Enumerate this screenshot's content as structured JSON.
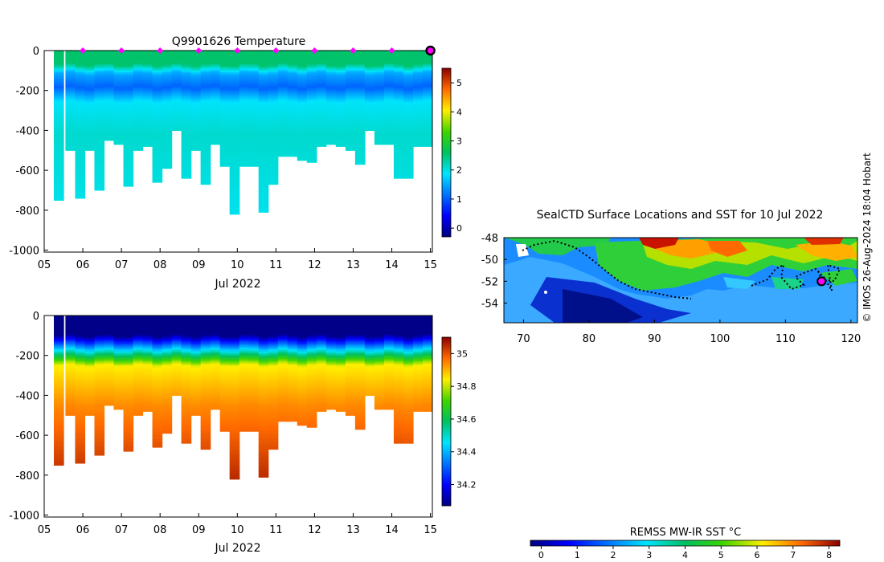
{
  "chart_data": [
    {
      "type": "heatmap",
      "id": "temperature",
      "title": "Q9901626  Temperature",
      "xlabel": "Jul 2022",
      "ylabel": "",
      "x_ticks": [
        "05",
        "06",
        "07",
        "08",
        "09",
        "10",
        "11",
        "12",
        "13",
        "14",
        "15"
      ],
      "y_ticks": [
        0,
        -200,
        -400,
        -600,
        -800,
        -1000
      ],
      "xlim": [
        5,
        15.05
      ],
      "ylim": [
        -1010,
        0
      ],
      "colorbar": {
        "range": [
          -0.3,
          5.5
        ],
        "ticks": [
          "0",
          "1",
          "2",
          "3",
          "4",
          "5"
        ],
        "tick_values": [
          0,
          1,
          2,
          3,
          4,
          5
        ]
      },
      "profile_markers": [
        6,
        7,
        8,
        9,
        10,
        11,
        12,
        13,
        14
      ],
      "current_profile": 15,
      "marker_color": "#ff00ff",
      "profile_days": [
        5.25,
        5.55,
        5.8,
        6.05,
        6.3,
        6.55,
        6.8,
        7.05,
        7.3,
        7.55,
        7.8,
        8.05,
        8.3,
        8.55,
        8.8,
        9.05,
        9.3,
        9.55,
        9.8,
        10.05,
        10.3,
        10.55,
        10.8,
        11.05,
        11.3,
        11.55,
        11.8,
        12.05,
        12.3,
        12.55,
        12.8,
        13.05,
        13.3,
        13.55,
        13.8,
        14.05,
        14.3,
        14.55,
        14.8
      ],
      "profile_max_depth": [
        -745,
        -500,
        -740,
        -500,
        -700,
        -450,
        -465,
        -680,
        -500,
        -475,
        -660,
        -585,
        -400,
        -640,
        -500,
        -665,
        -470,
        -575,
        -820,
        -580,
        -580,
        -810,
        -670,
        -530,
        -530,
        -550,
        -555,
        -475,
        -470,
        -480,
        -500,
        -570,
        -400,
        -465,
        -465,
        -640,
        -640,
        -480,
        -480
      ]
    },
    {
      "type": "heatmap",
      "id": "salinity",
      "title": "",
      "xlabel": "Jul 2022",
      "ylabel": "",
      "x_ticks": [
        "05",
        "06",
        "07",
        "08",
        "09",
        "10",
        "11",
        "12",
        "13",
        "14",
        "15"
      ],
      "y_ticks": [
        0,
        -200,
        -400,
        -600,
        -800,
        -1000
      ],
      "xlim": [
        5,
        15.05
      ],
      "ylim": [
        -1010,
        0
      ],
      "colorbar": {
        "range": [
          34.07,
          35.1
        ],
        "ticks": [
          "34.2",
          "34.4",
          "34.6",
          "34.8",
          "35"
        ],
        "tick_values": [
          34.2,
          34.4,
          34.6,
          34.8,
          35.0
        ]
      },
      "profile_days": [
        5.25,
        5.55,
        5.8,
        6.05,
        6.3,
        6.55,
        6.8,
        7.05,
        7.3,
        7.55,
        7.8,
        8.05,
        8.3,
        8.55,
        8.8,
        9.05,
        9.3,
        9.55,
        9.8,
        10.05,
        10.3,
        10.55,
        10.8,
        11.05,
        11.3,
        11.55,
        11.8,
        12.05,
        12.3,
        12.55,
        12.8,
        13.05,
        13.3,
        13.55,
        13.8,
        14.05,
        14.3,
        14.55,
        14.8
      ],
      "profile_max_depth": [
        -745,
        -500,
        -740,
        -500,
        -700,
        -450,
        -465,
        -680,
        -500,
        -475,
        -660,
        -585,
        -400,
        -640,
        -500,
        -665,
        -470,
        -575,
        -820,
        -580,
        -580,
        -810,
        -670,
        -530,
        -530,
        -550,
        -555,
        -475,
        -470,
        -480,
        -500,
        -570,
        -400,
        -465,
        -465,
        -640,
        -640,
        -480,
        -480
      ]
    },
    {
      "type": "map",
      "id": "sst-map",
      "title": "SealCTD Surface Locations and SST for 10 Jul 2022",
      "x_ticks": [
        "70",
        "80",
        "90",
        "100",
        "110",
        "120"
      ],
      "x_tick_values": [
        70,
        80,
        90,
        100,
        110,
        120
      ],
      "y_ticks": [
        "-48",
        "-50",
        "-52",
        "-54"
      ],
      "y_tick_values": [
        -48,
        -50,
        -52,
        -54
      ],
      "xlim": [
        67,
        121
      ],
      "ylim": [
        -55.8,
        -48
      ],
      "current_position": {
        "lon": 115.5,
        "lat": -52
      },
      "colorbar": {
        "label": "REMSS MW-IR SST °C",
        "range": [
          -0.3,
          8.3
        ],
        "ticks": [
          "0",
          "1",
          "2",
          "3",
          "4",
          "5",
          "6",
          "7",
          "8"
        ],
        "tick_values": [
          0,
          1,
          2,
          3,
          4,
          5,
          6,
          7,
          8
        ]
      }
    }
  ],
  "credit": "© IMOS 26-Aug-2024 18:04 Hobart"
}
